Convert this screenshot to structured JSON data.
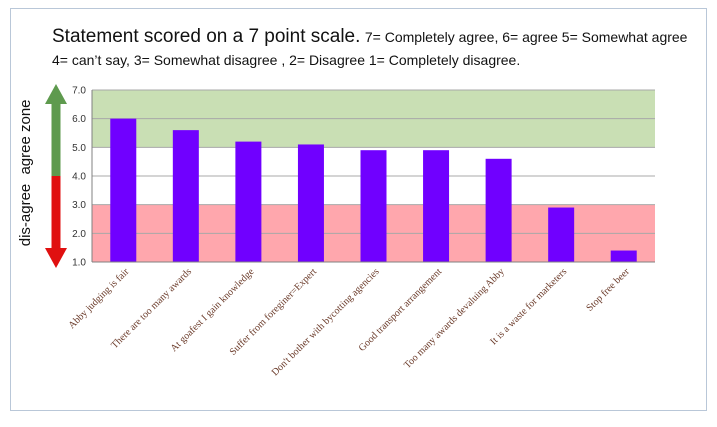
{
  "chart_data": {
    "type": "bar",
    "title": "Statement scored on a 7 point scale.",
    "subtitle": "7= Completely agree, 6= agree 5= Somewhat agree 4= can’t say, 3= Somewhat disagree , 2= Disagree 1= Completely disagree.",
    "categories": [
      "Abby judging is fair",
      "There are too many awards",
      "At goafest I gain knowledge",
      "Suffer from foreginer=Expert",
      "Don't bother with bycotting agencies",
      "Good transport arrangement",
      "Too many awards devaluing Abby",
      "It is a waste for marketers",
      "Stop free beer"
    ],
    "values": [
      6.0,
      5.6,
      5.2,
      5.1,
      4.9,
      4.9,
      4.6,
      2.9,
      1.4
    ],
    "ylim": [
      1.0,
      7.0
    ],
    "yticks": [
      "1.0",
      "2.0",
      "3.0",
      "4.0",
      "5.0",
      "6.0",
      "7.0"
    ],
    "bands": [
      {
        "name": "agree zone",
        "from": 5.0,
        "to": 7.0,
        "color": "#c9dfb4"
      },
      {
        "name": "dis-agree",
        "from": 1.0,
        "to": 3.0,
        "color": "#ffa7ad"
      }
    ],
    "bar_color": "#7000ff",
    "arrow_colors": {
      "agree": "#5e9a4e",
      "disagree": "#e01010"
    },
    "zone_labels": {
      "agree": "agree zone",
      "disagree": "dis-agree"
    }
  }
}
